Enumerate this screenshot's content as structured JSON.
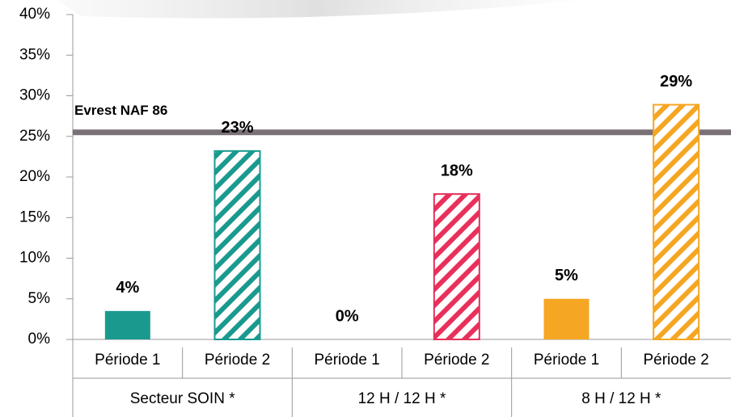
{
  "chart_data": {
    "type": "bar",
    "categories": [
      "Période 1",
      "Période 2",
      "Période 1",
      "Période 2",
      "Période 1",
      "Période 2"
    ],
    "groups": [
      "Secteur SOIN *",
      "12 H / 12 H *",
      "8 H / 12 H *"
    ],
    "values": [
      3.5,
      23.2,
      0,
      17.9,
      5,
      28.9
    ],
    "value_labels": [
      "4%",
      "23%",
      "0%",
      "18%",
      "5%",
      "29%"
    ],
    "colors": [
      "#1a9a8f",
      "#1a9a8f",
      "#e8305a",
      "#e8305a",
      "#f5a623",
      "#f5a623"
    ],
    "patterns": [
      "solid",
      "hatch",
      "solid",
      "hatch",
      "solid",
      "hatch"
    ],
    "reference_line": {
      "name": "Evrest NAF 86",
      "value": 25.5,
      "color": "#7a7078"
    },
    "ylim": [
      0,
      40
    ],
    "yticks": [
      {
        "value": 0,
        "label": "0%"
      },
      {
        "value": 5,
        "label": "5%"
      },
      {
        "value": 10,
        "label": "10%"
      },
      {
        "value": 15,
        "label": "15%"
      },
      {
        "value": 20,
        "label": "20%"
      },
      {
        "value": 25,
        "label": "25%"
      },
      {
        "value": 30,
        "label": "30%"
      },
      {
        "value": 35,
        "label": "35%"
      },
      {
        "value": 40,
        "label": "40%"
      }
    ]
  }
}
